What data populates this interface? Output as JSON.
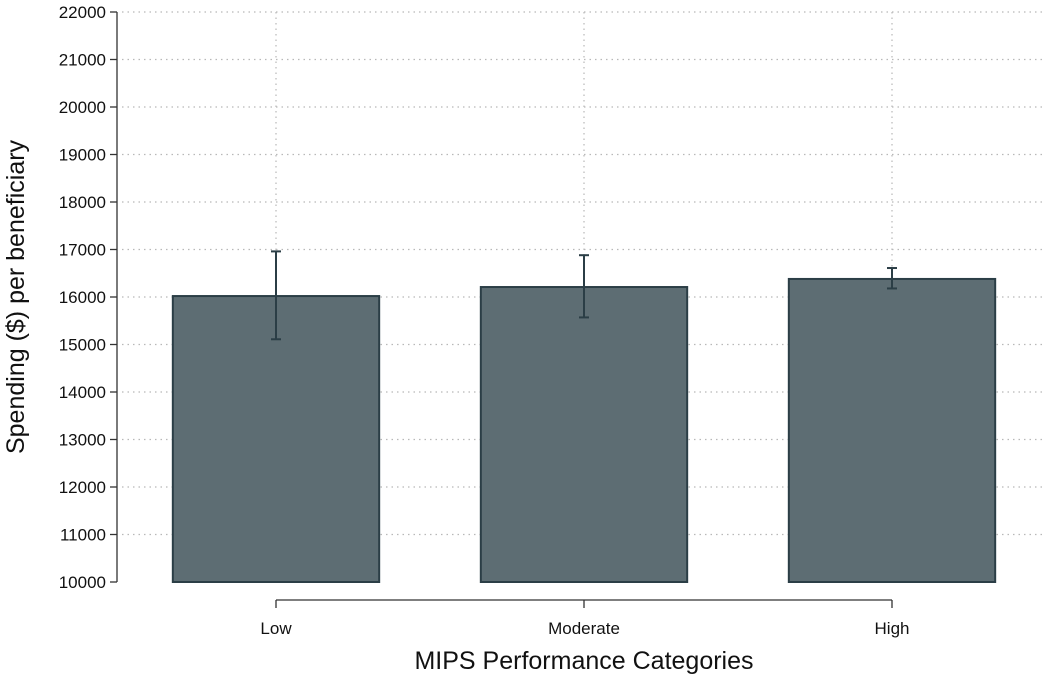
{
  "chart_data": {
    "type": "bar",
    "title": "",
    "xlabel": "MIPS Performance Categories",
    "ylabel": "Spending ($) per beneficiary",
    "categories": [
      "Low",
      "Moderate",
      "High"
    ],
    "values": [
      16020,
      16210,
      16380
    ],
    "error_low": [
      15110,
      15570,
      16180
    ],
    "error_high": [
      16960,
      16880,
      16610
    ],
    "ylim": [
      10000,
      22000
    ],
    "yticks": [
      10000,
      11000,
      12000,
      13000,
      14000,
      15000,
      16000,
      17000,
      18000,
      19000,
      20000,
      21000,
      22000
    ],
    "grid": true,
    "legend": "none",
    "colors": {
      "bar_fill": "#5d6d73",
      "bar_stroke": "#2b3e46",
      "error_bar": "#2b3e46",
      "grid": "#b8b8b8",
      "axis": "#333333"
    }
  }
}
